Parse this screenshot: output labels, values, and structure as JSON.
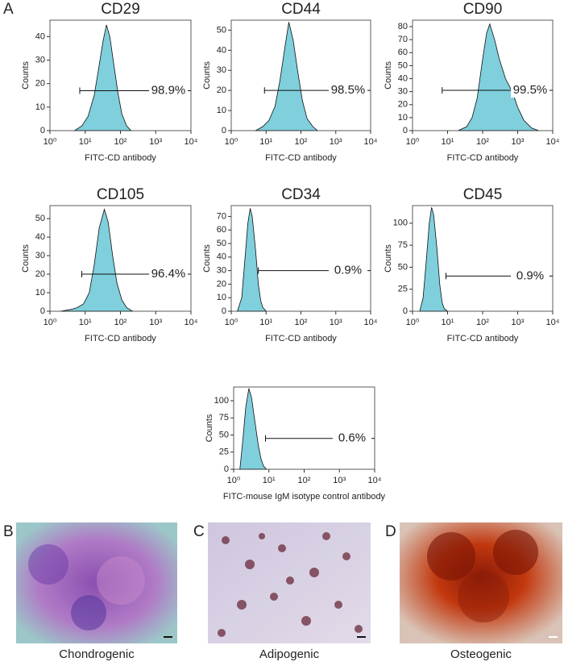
{
  "panels": {
    "a": "A",
    "b": "B",
    "c": "C",
    "d": "D"
  },
  "captions": {
    "b": "Chondrogenic",
    "c": "Adipogenic",
    "d": "Osteogenic"
  },
  "chart_data": [
    {
      "type": "area",
      "title": "CD29",
      "y_label": "Counts",
      "x_label": "FITC-CD antibody",
      "color": "#7fcfdc",
      "xscale": "log",
      "x": [
        5,
        8,
        12,
        18,
        25,
        32,
        40,
        50,
        65,
        85,
        110,
        150,
        200
      ],
      "values": [
        0,
        2,
        6,
        15,
        28,
        38,
        45,
        40,
        28,
        16,
        7,
        2,
        0
      ],
      "xlim": [
        1,
        10000
      ],
      "xticks": [
        {
          "value": 1,
          "label": "10⁰"
        },
        {
          "value": 10,
          "label": "10¹"
        },
        {
          "value": 100,
          "label": "10²"
        },
        {
          "value": 1000,
          "label": "10³"
        },
        {
          "value": 10000,
          "label": "10⁴"
        }
      ],
      "ylim": [
        0,
        47
      ],
      "yticks": [
        0,
        10,
        20,
        30,
        40
      ],
      "gate": {
        "x": [
          7,
          10000
        ],
        "y": 17,
        "percent": {
          "value": 98.9,
          "label": "98.9%"
        }
      }
    },
    {
      "type": "area",
      "title": "CD44",
      "y_label": "Counts",
      "x_label": "FITC-CD antibody",
      "color": "#7fcfdc",
      "xscale": "log",
      "x": [
        5,
        8,
        12,
        18,
        25,
        35,
        45,
        60,
        80,
        110,
        150,
        220,
        300
      ],
      "values": [
        0,
        2,
        5,
        12,
        25,
        42,
        54,
        45,
        30,
        15,
        6,
        2,
        0
      ],
      "xlim": [
        1,
        10000
      ],
      "xticks": [
        {
          "value": 1,
          "label": "10⁰"
        },
        {
          "value": 10,
          "label": "10¹"
        },
        {
          "value": 100,
          "label": "10²"
        },
        {
          "value": 1000,
          "label": "10³"
        },
        {
          "value": 10000,
          "label": "10⁴"
        }
      ],
      "ylim": [
        0,
        55
      ],
      "yticks": [
        0,
        10,
        20,
        30,
        40,
        50
      ],
      "gate": {
        "x": [
          9,
          10000
        ],
        "y": 20,
        "percent": {
          "value": 98.5,
          "label": "98.5%"
        }
      }
    },
    {
      "type": "area",
      "title": "CD90",
      "y_label": "Counts",
      "x_label": "FITC-CD antibody",
      "color": "#7fcfdc",
      "xscale": "log",
      "x": [
        20,
        35,
        50,
        70,
        100,
        130,
        160,
        220,
        300,
        450,
        700,
        1000,
        1500,
        2500,
        4000
      ],
      "values": [
        0,
        3,
        10,
        25,
        55,
        75,
        82,
        70,
        55,
        40,
        30,
        18,
        8,
        2,
        0
      ],
      "xlim": [
        1,
        10000
      ],
      "xticks": [
        {
          "value": 1,
          "label": "10⁰"
        },
        {
          "value": 10,
          "label": "10¹"
        },
        {
          "value": 100,
          "label": "10²"
        },
        {
          "value": 1000,
          "label": "10³"
        },
        {
          "value": 10000,
          "label": "10⁴"
        }
      ],
      "ylim": [
        0,
        85
      ],
      "yticks": [
        0,
        10,
        20,
        30,
        40,
        50,
        60,
        70,
        80
      ],
      "gate": {
        "x": [
          7,
          10000
        ],
        "y": 31,
        "percent": {
          "value": 99.5,
          "label": "99.5%"
        }
      }
    },
    {
      "type": "area",
      "title": "CD105",
      "y_label": "Counts",
      "x_label": "FITC-CD antibody",
      "color": "#7fcfdc",
      "xscale": "log",
      "x": [
        2,
        4,
        6,
        9,
        13,
        18,
        25,
        35,
        45,
        60,
        80,
        110,
        150,
        220
      ],
      "values": [
        0,
        1,
        2,
        4,
        10,
        25,
        45,
        55,
        48,
        30,
        15,
        6,
        2,
        0
      ],
      "xlim": [
        1,
        10000
      ],
      "xticks": [
        {
          "value": 1,
          "label": "10⁰"
        },
        {
          "value": 10,
          "label": "10¹"
        },
        {
          "value": 100,
          "label": "10²"
        },
        {
          "value": 1000,
          "label": "10³"
        },
        {
          "value": 10000,
          "label": "10⁴"
        }
      ],
      "ylim": [
        0,
        57
      ],
      "yticks": [
        0,
        10,
        20,
        30,
        40,
        50
      ],
      "gate": {
        "x": [
          8,
          10000
        ],
        "y": 20,
        "percent": {
          "value": 96.4,
          "label": "96.4%"
        }
      }
    },
    {
      "type": "area",
      "title": "CD34",
      "y_label": "Counts",
      "x_label": "FITC-CD antibody",
      "color": "#7fcfdc",
      "xscale": "log",
      "x": [
        1.5,
        2,
        2.5,
        3,
        3.5,
        4,
        5,
        6,
        7,
        8,
        10
      ],
      "values": [
        0,
        10,
        40,
        65,
        76,
        70,
        45,
        20,
        8,
        3,
        0
      ],
      "xlim": [
        1,
        10000
      ],
      "xticks": [
        {
          "value": 1,
          "label": "10⁰"
        },
        {
          "value": 10,
          "label": "10¹"
        },
        {
          "value": 100,
          "label": "10²"
        },
        {
          "value": 1000,
          "label": "10³"
        },
        {
          "value": 10000,
          "label": "10⁴"
        }
      ],
      "ylim": [
        0,
        78
      ],
      "yticks": [
        0,
        10,
        20,
        30,
        40,
        50,
        60,
        70
      ],
      "gate": {
        "x": [
          6,
          10000
        ],
        "y": 30,
        "percent": {
          "value": 0.9,
          "label": "0.9%"
        }
      }
    },
    {
      "type": "area",
      "title": "CD45",
      "y_label": "Counts",
      "x_label": "FITC-CD antibody",
      "color": "#7fcfdc",
      "xscale": "log",
      "x": [
        1.6,
        2,
        2.5,
        3,
        3.5,
        4,
        5,
        6,
        7,
        8,
        10
      ],
      "values": [
        0,
        15,
        60,
        100,
        118,
        110,
        70,
        30,
        10,
        3,
        0
      ],
      "xlim": [
        1,
        10000
      ],
      "xticks": [
        {
          "value": 1,
          "label": "10⁰"
        },
        {
          "value": 10,
          "label": "10¹"
        },
        {
          "value": 100,
          "label": "10²"
        },
        {
          "value": 1000,
          "label": "10³"
        },
        {
          "value": 10000,
          "label": "10⁴"
        }
      ],
      "ylim": [
        0,
        120
      ],
      "yticks": [
        0,
        25,
        50,
        75,
        100
      ],
      "gate": {
        "x": [
          9,
          10000
        ],
        "y": 40,
        "percent": {
          "value": 0.9,
          "label": "0.9%"
        }
      }
    },
    {
      "type": "area",
      "y_label": "Counts",
      "x_label": "FITC-mouse IgM isotype control antibody",
      "color": "#7fcfdc",
      "xscale": "log",
      "x": [
        1.5,
        1.8,
        2.2,
        2.7,
        3.2,
        4,
        5,
        6,
        7,
        8.5
      ],
      "values": [
        0,
        40,
        90,
        118,
        105,
        70,
        35,
        15,
        5,
        0
      ],
      "xlim": [
        1,
        10000
      ],
      "xticks": [
        {
          "value": 1,
          "label": "10⁰"
        },
        {
          "value": 10,
          "label": "10¹"
        },
        {
          "value": 100,
          "label": "10²"
        },
        {
          "value": 1000,
          "label": "10³"
        },
        {
          "value": 10000,
          "label": "10⁴"
        }
      ],
      "ylim": [
        0,
        120
      ],
      "yticks": [
        0,
        25,
        50,
        75,
        100
      ],
      "gate": {
        "x": [
          8,
          10000
        ],
        "y": 45,
        "percent": {
          "value": 0.6,
          "label": "0.6%"
        }
      }
    }
  ]
}
